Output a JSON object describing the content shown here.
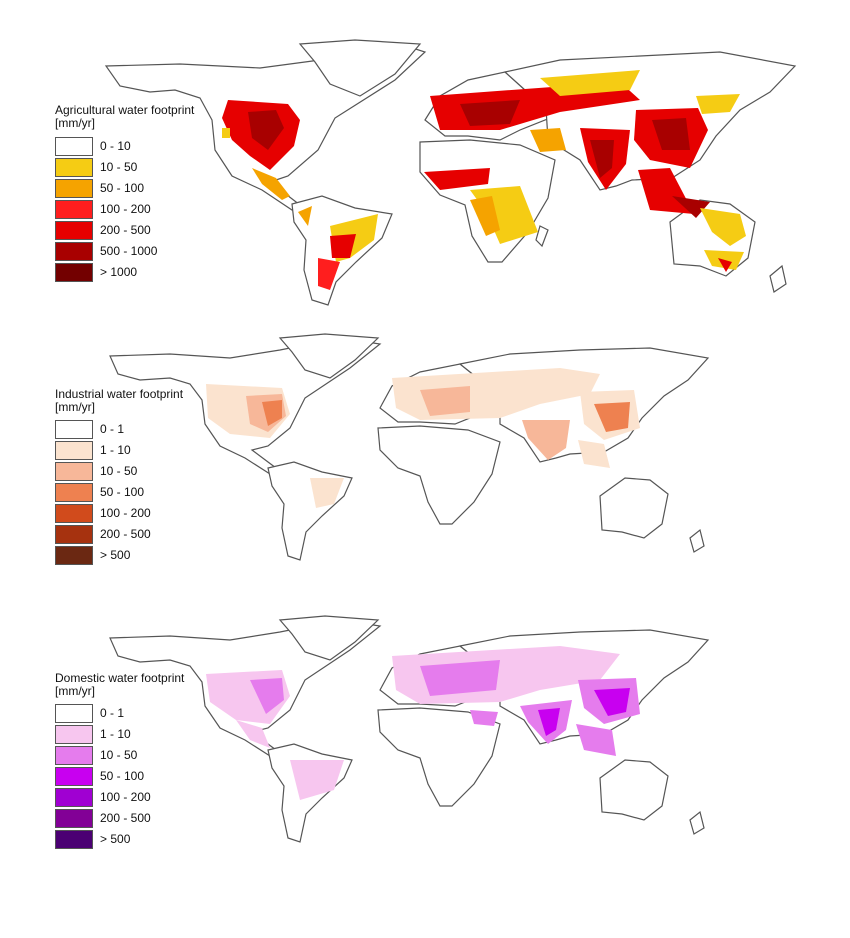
{
  "maps": [
    {
      "id": "agricultural",
      "title": "Agricultural water footprint",
      "unit": "[mm/yr]",
      "classes": [
        {
          "label": "0 - 10",
          "color": "#ffffff"
        },
        {
          "label": "10 - 50",
          "color": "#f5cc14"
        },
        {
          "label": "50 - 100",
          "color": "#f5a300"
        },
        {
          "label": "100 - 200",
          "color": "#ff1e1e"
        },
        {
          "label": "200 - 500",
          "color": "#e60000"
        },
        {
          "label": "500 - 1000",
          "color": "#a80000"
        },
        {
          "label": "> 1000",
          "color": "#730000"
        }
      ]
    },
    {
      "id": "industrial",
      "title": "Industrial water footprint",
      "unit": "[mm/yr]",
      "classes": [
        {
          "label": "0 - 1",
          "color": "#ffffff"
        },
        {
          "label": "1 - 10",
          "color": "#fbe3cf"
        },
        {
          "label": "10 - 50",
          "color": "#f7b799"
        },
        {
          "label": "50 - 100",
          "color": "#ee8150"
        },
        {
          "label": "100 - 200",
          "color": "#d14b1c"
        },
        {
          "label": "200 - 500",
          "color": "#a6320f"
        },
        {
          "label": "> 500",
          "color": "#6b2812"
        }
      ]
    },
    {
      "id": "domestic",
      "title": "Domestic water footprint",
      "unit": "[mm/yr]",
      "classes": [
        {
          "label": "0 - 1",
          "color": "#ffffff"
        },
        {
          "label": "1 - 10",
          "color": "#f7c6ef"
        },
        {
          "label": "10 - 50",
          "color": "#e57ced"
        },
        {
          "label": "50 - 100",
          "color": "#c800f0"
        },
        {
          "label": "100 - 200",
          "color": "#a000d2"
        },
        {
          "label": "200 - 500",
          "color": "#820096"
        },
        {
          "label": "> 500",
          "color": "#4b0073"
        }
      ]
    }
  ]
}
